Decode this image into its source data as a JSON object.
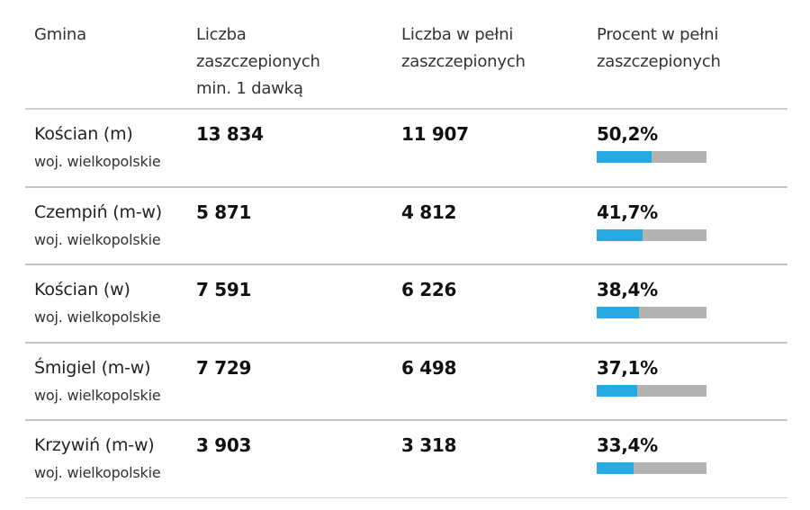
{
  "table": {
    "headers": {
      "gmina": "Gmina",
      "min1_line1": "Liczba",
      "min1_line2": "zaszczepionych",
      "min1_line3": "min. 1 dawką",
      "full_line1": "Liczba w pełni",
      "full_line2": "zaszczepionych",
      "pct_line1": "Procent w pełni",
      "pct_line2": "zaszczepionych"
    },
    "rows": [
      {
        "name": "Kościan (m)",
        "region": "woj. wielkopolskie",
        "min1": "13 834",
        "full": "11 907",
        "pct": "50,2%",
        "pct_value": 50.2
      },
      {
        "name": "Czempiń (m-w)",
        "region": "woj. wielkopolskie",
        "min1": "5 871",
        "full": "4 812",
        "pct": "41,7%",
        "pct_value": 41.7
      },
      {
        "name": "Kościan (w)",
        "region": "woj. wielkopolskie",
        "min1": "7 591",
        "full": "6 226",
        "pct": "38,4%",
        "pct_value": 38.4
      },
      {
        "name": "Śmigiel (m-w)",
        "region": "woj. wielkopolskie",
        "min1": "7 729",
        "full": "6 498",
        "pct": "37,1%",
        "pct_value": 37.1
      },
      {
        "name": "Krzywiń (m-w)",
        "region": "woj. wielkopolskie",
        "min1": "3 903",
        "full": "3 318",
        "pct": "33,4%",
        "pct_value": 33.4
      }
    ]
  },
  "colors": {
    "bar_fill": "#27aae1",
    "bar_track": "#b3b3b3",
    "divider": "#c4c4c4"
  }
}
